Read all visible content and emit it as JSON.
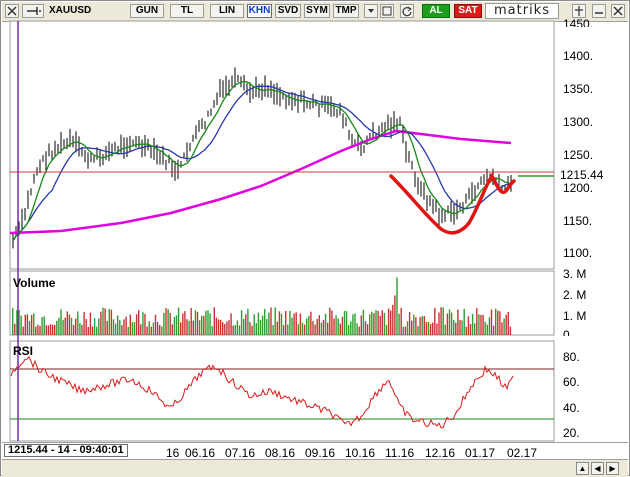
{
  "toolbar": {
    "symbol": "XAUUSD",
    "buttons": [
      "GUN",
      "TL",
      "LIN",
      "KHN",
      "SVD",
      "SYM",
      "TMP"
    ],
    "active_button": "KHN",
    "buy_label": "AL",
    "sell_label": "SAT",
    "brand": "matriks",
    "icons": [
      "close-icon",
      "pin-icon",
      "refresh-icon",
      "window-icon",
      "close-icon"
    ]
  },
  "price_pane": {
    "y_ticks": [
      "1400.",
      "1350.",
      "1300.",
      "1250.",
      "1200.",
      "1150.",
      "1100."
    ],
    "top_tick_partial": "1450.",
    "last_price": "1215.44"
  },
  "volume_pane": {
    "title": "Volume",
    "y_ticks": [
      "3. M",
      "2. M",
      "1. M"
    ],
    "bottom_tick_partial": "0."
  },
  "rsi_pane": {
    "title": "RSI",
    "y_ticks": [
      "80.",
      "60.",
      "40.",
      "20."
    ],
    "upper_band": 70,
    "lower_band": 30
  },
  "status": {
    "readout": "1215.44 - 14 - 09:40:01"
  },
  "x_axis": {
    "dates": [
      "06.16",
      "07.16",
      "08.16",
      "09.16",
      "10.16",
      "11.16",
      "12.16",
      "01.17",
      "02.17"
    ],
    "partial_first": "16"
  },
  "colors": {
    "ma_slow": "#e000e0",
    "ma_mid": "#2838a8",
    "ma_fast": "#178a17",
    "price_bars": "#000000",
    "annotation": "#e11414",
    "hline": "#c83a3a",
    "volume_up": "#2e9d2e",
    "volume_down": "#c83232",
    "rsi_line": "#d81b1b",
    "cursor_line": "#7a2aa6"
  }
}
